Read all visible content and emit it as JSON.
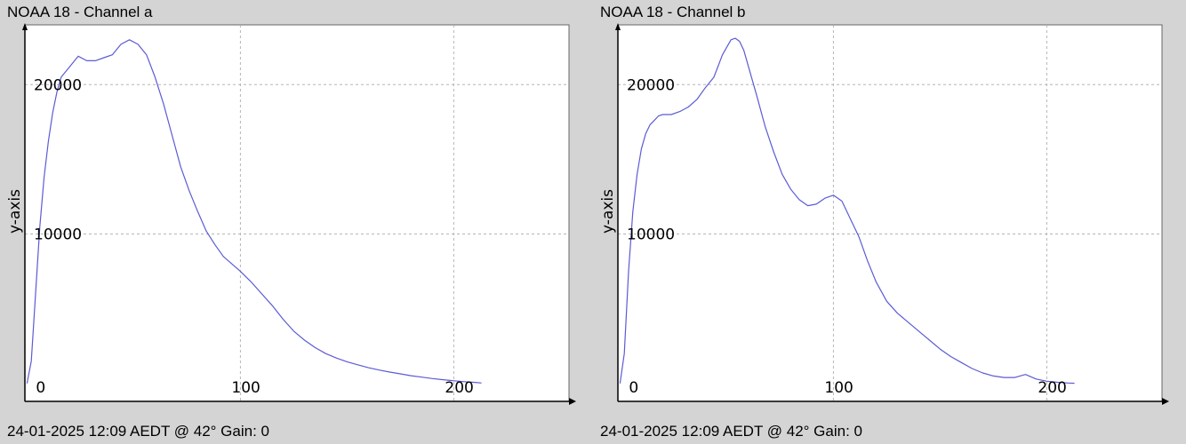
{
  "panels": [
    {
      "title": "NOAA 18 - Channel a",
      "footer": "24-01-2025 12:09 AEDT @ 42° Gain: 0",
      "ylabel": "y-axis"
    },
    {
      "title": "NOAA 18 - Channel b",
      "footer": "24-01-2025 12:09 AEDT @ 42° Gain: 0",
      "ylabel": "y-axis"
    }
  ],
  "colors": {
    "background": "#d4d4d4",
    "plot_bg": "#ffffff",
    "line": "#5b5bd6",
    "grid": "#b4b4b4",
    "axis": "#000000"
  },
  "chart_data": [
    {
      "type": "line",
      "title": "NOAA 18 - Channel a",
      "xlabel": "",
      "ylabel": "y-axis",
      "xlim": [
        -1,
        254
      ],
      "ylim": [
        -1200,
        24000
      ],
      "xticks": [
        0,
        100,
        200
      ],
      "xtick_labels": [
        "0",
        "100",
        "200"
      ],
      "yticks": [
        10000,
        20000
      ],
      "ytick_labels": [
        "10000",
        "20000"
      ],
      "grid": true,
      "series": [
        {
          "x": [
            0,
            2,
            4,
            6,
            8,
            10,
            12,
            14,
            16,
            20,
            24,
            28,
            32,
            36,
            40,
            44,
            48,
            52,
            56,
            60,
            64,
            68,
            72,
            76,
            80,
            84,
            88,
            92,
            96,
            100,
            105,
            110,
            115,
            120,
            125,
            130,
            135,
            140,
            145,
            150,
            155,
            160,
            165,
            170,
            175,
            180,
            185,
            190,
            195,
            200,
            205,
            210,
            213
          ],
          "y": [
            0,
            1500,
            6000,
            10500,
            13800,
            16200,
            18100,
            19500,
            20500,
            21200,
            21900,
            21600,
            21600,
            21800,
            22000,
            22700,
            23000,
            22700,
            22000,
            20500,
            18700,
            16600,
            14500,
            12900,
            11500,
            10200,
            9300,
            8500,
            8000,
            7500,
            6800,
            6000,
            5200,
            4300,
            3500,
            2900,
            2400,
            2000,
            1700,
            1450,
            1250,
            1050,
            900,
            760,
            640,
            520,
            420,
            330,
            250,
            180,
            120,
            70,
            30
          ]
        }
      ]
    },
    {
      "type": "line",
      "title": "NOAA 18 - Channel b",
      "xlabel": "",
      "ylabel": "y-axis",
      "xlim": [
        -1,
        254
      ],
      "ylim": [
        -1200,
        24000
      ],
      "xticks": [
        0,
        100,
        200
      ],
      "xtick_labels": [
        "0",
        "100",
        "200"
      ],
      "yticks": [
        10000,
        20000
      ],
      "ytick_labels": [
        "10000",
        "20000"
      ],
      "grid": true,
      "series": [
        {
          "x": [
            0,
            2,
            4,
            6,
            8,
            10,
            12,
            14,
            16,
            18,
            20,
            24,
            28,
            32,
            36,
            40,
            44,
            48,
            52,
            54,
            56,
            58,
            60,
            64,
            68,
            72,
            76,
            80,
            84,
            88,
            92,
            96,
            100,
            104,
            108,
            112,
            116,
            120,
            125,
            130,
            135,
            140,
            145,
            150,
            155,
            160,
            165,
            170,
            175,
            180,
            185,
            190,
            195,
            200,
            205,
            210,
            213
          ],
          "y": [
            0,
            2000,
            7500,
            11500,
            14000,
            15700,
            16700,
            17300,
            17600,
            17900,
            18000,
            18000,
            18200,
            18500,
            19000,
            19800,
            20500,
            22000,
            23000,
            23100,
            22900,
            22300,
            21300,
            19300,
            17200,
            15500,
            14000,
            13000,
            12300,
            11900,
            12000,
            12400,
            12600,
            12200,
            11000,
            9800,
            8200,
            6800,
            5500,
            4700,
            4100,
            3500,
            2900,
            2300,
            1800,
            1400,
            1000,
            700,
            500,
            400,
            400,
            600,
            300,
            150,
            80,
            30,
            10
          ]
        }
      ]
    }
  ]
}
